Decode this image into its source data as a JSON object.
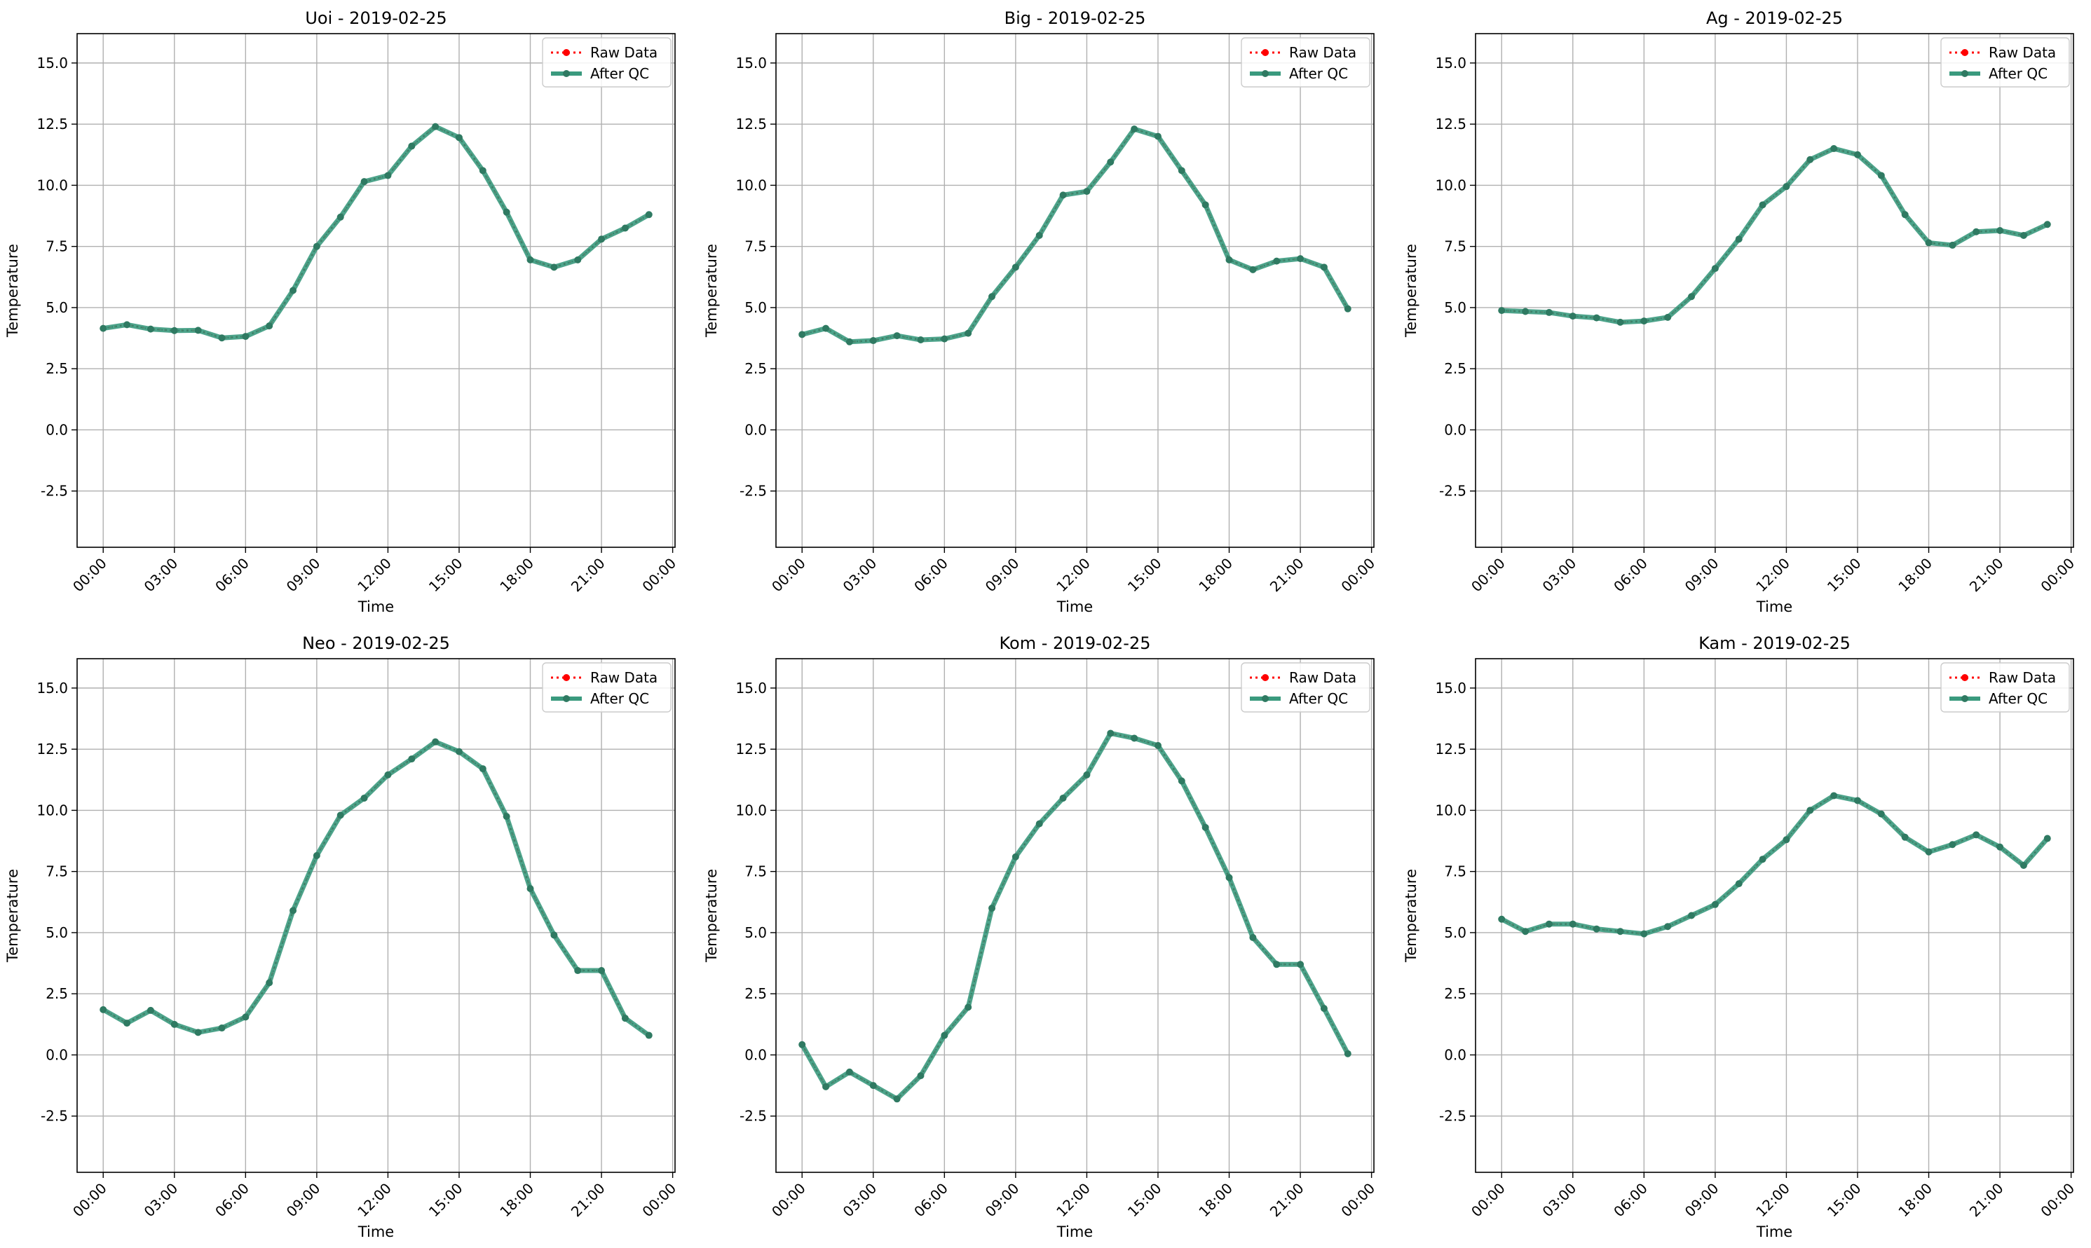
{
  "figure": {
    "chart_type": "line",
    "grid": true,
    "legend_position": "upper-right",
    "colors": {
      "raw": "#ff0000",
      "after_qc": "#3a9a7e",
      "marker": "#2f7a62",
      "grid": "#b0b0b0",
      "axis": "#000000"
    },
    "legend": [
      "Raw Data",
      "After QC"
    ],
    "xlabel": "Time",
    "ylabel": "Temperature",
    "x_tick_labels": [
      "00:00",
      "03:00",
      "06:00",
      "09:00",
      "12:00",
      "15:00",
      "18:00",
      "21:00",
      "00:00"
    ],
    "y_tick_labels": [
      "-2.5",
      "0.0",
      "2.5",
      "5.0",
      "7.5",
      "10.0",
      "12.5",
      "15.0"
    ]
  },
  "chart_data": [
    {
      "type": "line",
      "title": "Uoi - 2019-02-25",
      "xlabel": "Time",
      "ylabel": "Temperature",
      "xlim": [
        -1.1,
        24.1
      ],
      "ylim": [
        -4.8,
        16.2
      ],
      "x_hours": [
        0,
        1,
        2,
        3,
        4,
        5,
        6,
        7,
        8,
        9,
        10,
        11,
        12,
        13,
        14,
        15,
        16,
        17,
        18,
        19,
        20,
        21,
        22,
        23
      ],
      "series": [
        {
          "name": "Raw Data",
          "values": [
            4.15,
            4.3,
            4.12,
            4.06,
            4.07,
            3.76,
            3.82,
            4.25,
            5.7,
            7.5,
            8.7,
            10.15,
            10.4,
            11.6,
            12.4,
            11.95,
            10.6,
            8.9,
            6.95,
            6.65,
            6.95,
            7.8,
            8.25,
            8.8
          ]
        },
        {
          "name": "After QC",
          "values": [
            4.15,
            4.3,
            4.12,
            4.06,
            4.07,
            3.76,
            3.82,
            4.25,
            5.7,
            7.5,
            8.7,
            10.15,
            10.4,
            11.6,
            12.4,
            11.95,
            10.6,
            8.9,
            6.95,
            6.65,
            6.95,
            7.8,
            8.25,
            8.8
          ]
        }
      ]
    },
    {
      "type": "line",
      "title": "Big - 2019-02-25",
      "xlabel": "Time",
      "ylabel": "Temperature",
      "xlim": [
        -1.1,
        24.1
      ],
      "ylim": [
        -4.8,
        16.2
      ],
      "x_hours": [
        0,
        1,
        2,
        3,
        4,
        5,
        6,
        7,
        8,
        9,
        10,
        11,
        12,
        13,
        14,
        15,
        16,
        17,
        18,
        19,
        20,
        21,
        22,
        23
      ],
      "series": [
        {
          "name": "Raw Data",
          "values": [
            3.9,
            4.15,
            3.6,
            3.65,
            3.85,
            3.68,
            3.72,
            3.95,
            5.45,
            6.65,
            7.95,
            9.6,
            9.75,
            10.95,
            12.3,
            12.0,
            10.6,
            9.2,
            6.95,
            6.55,
            6.9,
            7.0,
            6.65,
            4.95
          ]
        },
        {
          "name": "After QC",
          "values": [
            3.9,
            4.15,
            3.6,
            3.65,
            3.85,
            3.68,
            3.72,
            3.95,
            5.45,
            6.65,
            7.95,
            9.6,
            9.75,
            10.95,
            12.3,
            12.0,
            10.6,
            9.2,
            6.95,
            6.55,
            6.9,
            7.0,
            6.65,
            4.95
          ]
        }
      ]
    },
    {
      "type": "line",
      "title": "Ag - 2019-02-25",
      "xlabel": "Time",
      "ylabel": "Temperature",
      "xlim": [
        -1.1,
        24.1
      ],
      "ylim": [
        -4.8,
        16.2
      ],
      "x_hours": [
        0,
        1,
        2,
        3,
        4,
        5,
        6,
        7,
        8,
        9,
        10,
        11,
        12,
        13,
        14,
        15,
        16,
        17,
        18,
        19,
        20,
        21,
        22,
        23
      ],
      "series": [
        {
          "name": "Raw Data",
          "values": [
            4.88,
            4.84,
            4.8,
            4.65,
            4.58,
            4.4,
            4.45,
            4.6,
            5.45,
            6.6,
            7.8,
            9.2,
            9.95,
            11.05,
            11.5,
            11.25,
            10.4,
            8.8,
            7.65,
            7.55,
            8.1,
            8.15,
            7.95,
            8.4
          ]
        },
        {
          "name": "After QC",
          "values": [
            4.88,
            4.84,
            4.8,
            4.65,
            4.58,
            4.4,
            4.45,
            4.6,
            5.45,
            6.6,
            7.8,
            9.2,
            9.95,
            11.05,
            11.5,
            11.25,
            10.4,
            8.8,
            7.65,
            7.55,
            8.1,
            8.15,
            7.95,
            8.4
          ]
        }
      ]
    },
    {
      "type": "line",
      "title": "Neo - 2019-02-25",
      "xlabel": "Time",
      "ylabel": "Temperature",
      "xlim": [
        -1.1,
        24.1
      ],
      "ylim": [
        -4.8,
        16.2
      ],
      "x_hours": [
        0,
        1,
        2,
        3,
        4,
        5,
        6,
        7,
        8,
        9,
        10,
        11,
        12,
        13,
        14,
        15,
        16,
        17,
        18,
        19,
        20,
        21,
        22,
        23
      ],
      "series": [
        {
          "name": "Raw Data",
          "values": [
            1.85,
            1.3,
            1.82,
            1.25,
            0.92,
            1.1,
            1.55,
            2.95,
            5.9,
            8.15,
            9.8,
            10.5,
            11.45,
            12.1,
            12.8,
            12.4,
            11.7,
            9.75,
            6.8,
            4.9,
            3.45,
            3.45,
            1.5,
            0.8
          ]
        },
        {
          "name": "After QC",
          "values": [
            1.85,
            1.3,
            1.82,
            1.25,
            0.92,
            1.1,
            1.55,
            2.95,
            5.9,
            8.15,
            9.8,
            10.5,
            11.45,
            12.1,
            12.8,
            12.4,
            11.7,
            9.75,
            6.8,
            4.9,
            3.45,
            3.45,
            1.5,
            0.8
          ]
        }
      ]
    },
    {
      "type": "line",
      "title": "Kom - 2019-02-25",
      "xlabel": "Time",
      "ylabel": "Temperature",
      "xlim": [
        -1.1,
        24.1
      ],
      "ylim": [
        -4.8,
        16.2
      ],
      "x_hours": [
        0,
        1,
        2,
        3,
        4,
        5,
        6,
        7,
        8,
        9,
        10,
        11,
        12,
        13,
        14,
        15,
        16,
        17,
        18,
        19,
        20,
        21,
        22,
        23
      ],
      "series": [
        {
          "name": "Raw Data",
          "values": [
            0.42,
            -1.3,
            -0.7,
            -1.25,
            -1.8,
            -0.85,
            0.8,
            1.95,
            6.0,
            8.1,
            9.45,
            10.5,
            11.45,
            13.15,
            12.95,
            12.65,
            11.2,
            9.3,
            7.25,
            4.8,
            3.7,
            3.7,
            1.9,
            0.05
          ]
        },
        {
          "name": "After QC",
          "values": [
            0.42,
            -1.3,
            -0.7,
            -1.25,
            -1.8,
            -0.85,
            0.8,
            1.95,
            6.0,
            8.1,
            9.45,
            10.5,
            11.45,
            13.15,
            12.95,
            12.65,
            11.2,
            9.3,
            7.25,
            4.8,
            3.7,
            3.7,
            1.9,
            0.05
          ]
        }
      ]
    },
    {
      "type": "line",
      "title": "Kam - 2019-02-25",
      "xlabel": "Time",
      "ylabel": "Temperature",
      "xlim": [
        -1.1,
        24.1
      ],
      "ylim": [
        -4.8,
        16.2
      ],
      "x_hours": [
        0,
        1,
        2,
        3,
        4,
        5,
        6,
        7,
        8,
        9,
        10,
        11,
        12,
        13,
        14,
        15,
        16,
        17,
        18,
        19,
        20,
        21,
        22,
        23
      ],
      "series": [
        {
          "name": "Raw Data",
          "values": [
            5.55,
            5.05,
            5.35,
            5.35,
            5.15,
            5.05,
            4.95,
            5.25,
            5.7,
            6.15,
            7.0,
            8.0,
            8.8,
            10.0,
            10.6,
            10.4,
            9.85,
            8.9,
            8.3,
            8.6,
            9.0,
            8.5,
            7.75,
            8.85
          ]
        },
        {
          "name": "After QC",
          "values": [
            5.55,
            5.05,
            5.35,
            5.35,
            5.15,
            5.05,
            4.95,
            5.25,
            5.7,
            6.15,
            7.0,
            8.0,
            8.8,
            10.0,
            10.6,
            10.4,
            9.85,
            8.9,
            8.3,
            8.6,
            9.0,
            8.5,
            7.75,
            8.85
          ]
        }
      ]
    }
  ]
}
